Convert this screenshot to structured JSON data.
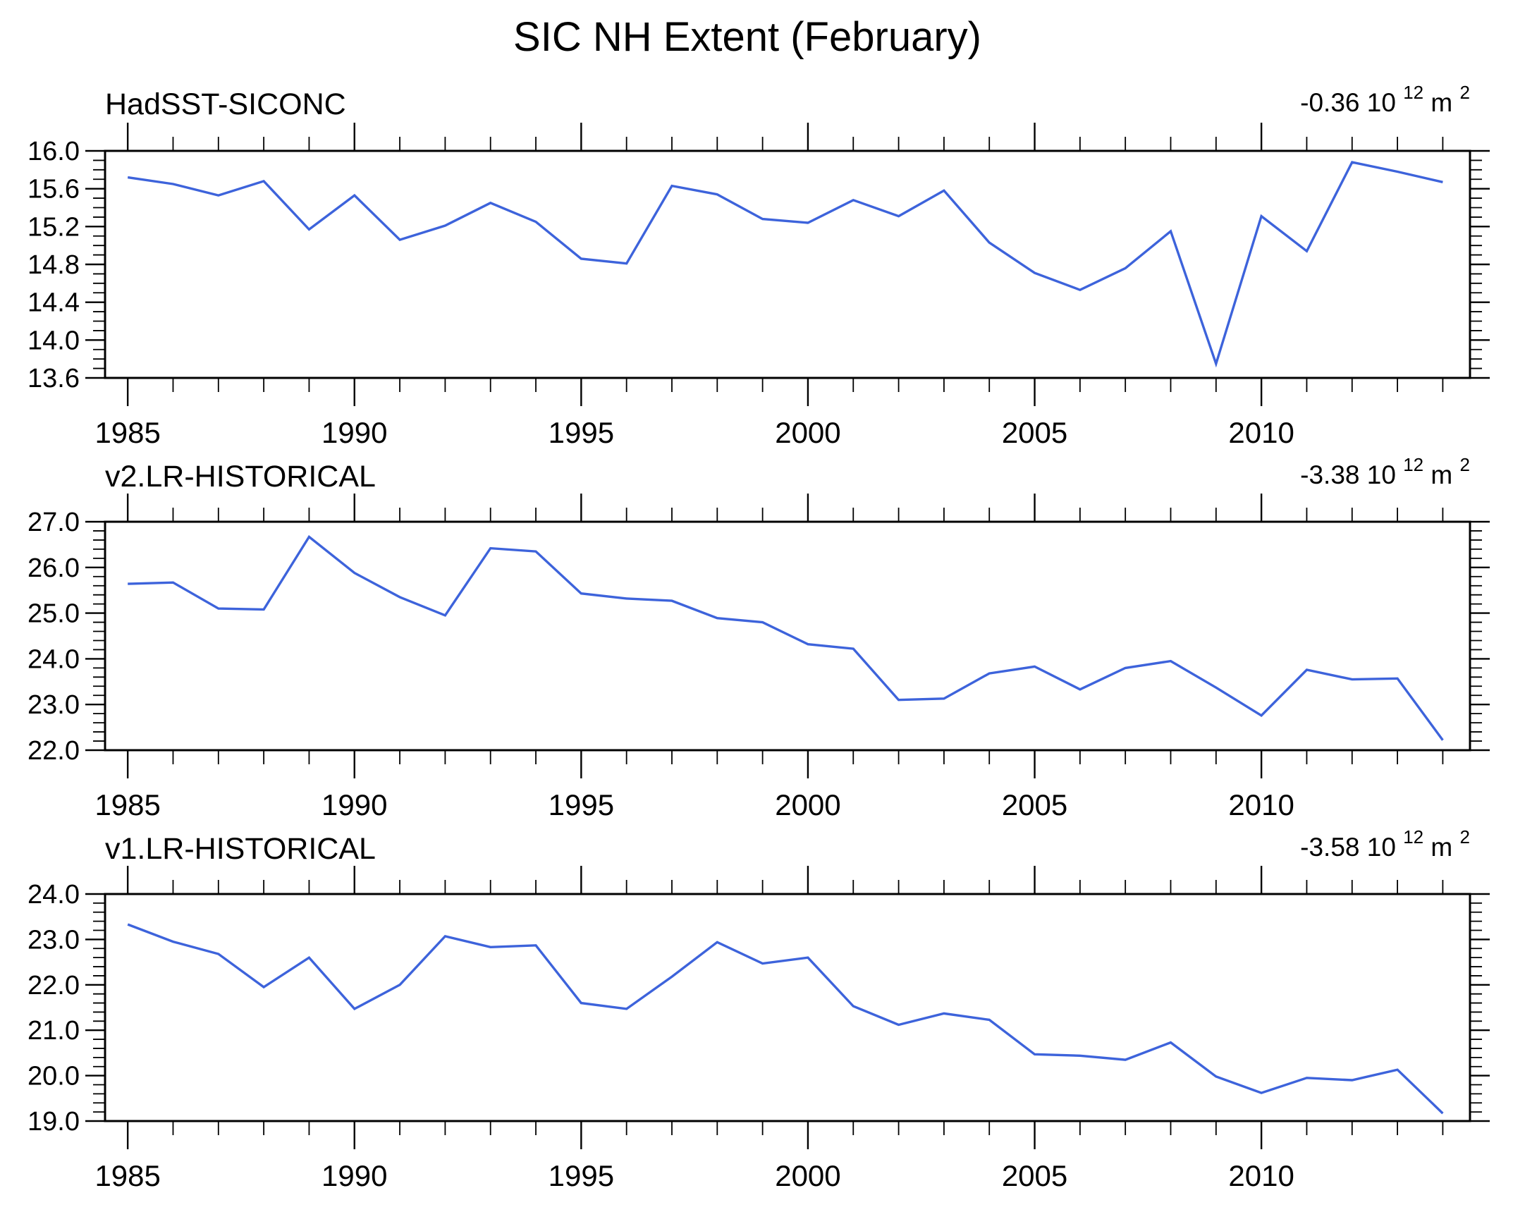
{
  "title": "SIC NH Extent (February)",
  "line_color": "#3D63DB",
  "axis_color": "#000000",
  "panels": [
    {
      "label": "HadSST-SICONC",
      "annotation": {
        "value": "-0.36 10",
        "exponent": "12",
        "unit": " m",
        "unit_exponent": "2"
      }
    },
    {
      "label": "v2.LR-HISTORICAL",
      "annotation": {
        "value": "-3.38 10",
        "exponent": "12",
        "unit": " m",
        "unit_exponent": "2"
      }
    },
    {
      "label": "v1.LR-HISTORICAL",
      "annotation": {
        "value": "-3.58 10",
        "exponent": "12",
        "unit": " m",
        "unit_exponent": "2"
      }
    }
  ],
  "chart_data": [
    {
      "type": "line",
      "title": "HadSST-SICONC",
      "annotation": "-0.36 10^12 m^2",
      "x": [
        1985,
        1986,
        1987,
        1988,
        1989,
        1990,
        1991,
        1992,
        1993,
        1994,
        1995,
        1996,
        1997,
        1998,
        1999,
        2000,
        2001,
        2002,
        2003,
        2004,
        2005,
        2006,
        2007,
        2008,
        2009,
        2010,
        2011,
        2012,
        2013,
        2014
      ],
      "values": [
        15.72,
        15.65,
        15.53,
        15.68,
        15.17,
        15.53,
        15.06,
        15.21,
        15.45,
        15.25,
        14.86,
        14.81,
        15.63,
        15.54,
        15.28,
        15.24,
        15.48,
        15.31,
        15.58,
        15.03,
        14.71,
        14.53,
        14.76,
        15.15,
        13.75,
        15.31,
        14.94,
        15.88,
        15.78,
        15.67
      ],
      "xlim": [
        1984.5,
        2014.6
      ],
      "ylim": [
        13.6,
        16.0
      ],
      "xtick_major_values": [
        1985,
        1990,
        1995,
        2000,
        2005,
        2010
      ],
      "xtick_major_labels": [
        "1985",
        "1990",
        "1995",
        "2000",
        "2005",
        "2010"
      ],
      "xtick_minor_step": 1,
      "ytick_values": [
        16.0,
        15.6,
        15.2,
        14.8,
        14.4,
        14.0,
        13.6
      ],
      "ytick_labels": [
        "16.0",
        "15.6",
        "15.2",
        "14.8",
        "14.4",
        "14.0",
        "13.6"
      ],
      "ytick_minor_step": 0.1,
      "grid": false,
      "legend": "none"
    },
    {
      "type": "line",
      "title": "v2.LR-HISTORICAL",
      "annotation": "-3.38 10^12 m^2",
      "x": [
        1985,
        1986,
        1987,
        1988,
        1989,
        1990,
        1991,
        1992,
        1993,
        1994,
        1995,
        1996,
        1997,
        1998,
        1999,
        2000,
        2001,
        2002,
        2003,
        2004,
        2005,
        2006,
        2007,
        2008,
        2009,
        2010,
        2011,
        2012,
        2013,
        2014
      ],
      "values": [
        25.64,
        25.67,
        25.1,
        25.08,
        26.67,
        25.88,
        25.35,
        24.95,
        26.42,
        26.35,
        25.43,
        25.32,
        25.27,
        24.89,
        24.8,
        24.32,
        24.22,
        23.1,
        23.13,
        23.68,
        23.83,
        23.33,
        23.8,
        23.95,
        23.37,
        22.76,
        23.76,
        23.55,
        23.57,
        22.22
      ],
      "xlim": [
        1984.5,
        2014.6
      ],
      "ylim": [
        22.0,
        27.0
      ],
      "xtick_major_values": [
        1985,
        1990,
        1995,
        2000,
        2005,
        2010
      ],
      "xtick_major_labels": [
        "1985",
        "1990",
        "1995",
        "2000",
        "2005",
        "2010"
      ],
      "xtick_minor_step": 1,
      "ytick_values": [
        27.0,
        26.0,
        25.0,
        24.0,
        23.0,
        22.0
      ],
      "ytick_labels": [
        "27.0",
        "26.0",
        "25.0",
        "24.0",
        "23.0",
        "22.0"
      ],
      "ytick_minor_step": 0.2,
      "grid": false,
      "legend": "none"
    },
    {
      "type": "line",
      "title": "v1.LR-HISTORICAL",
      "annotation": "-3.58 10^12 m^2",
      "x": [
        1985,
        1986,
        1987,
        1988,
        1989,
        1990,
        1991,
        1992,
        1993,
        1994,
        1995,
        1996,
        1997,
        1998,
        1999,
        2000,
        2001,
        2002,
        2003,
        2004,
        2005,
        2006,
        2007,
        2008,
        2009,
        2010,
        2011,
        2012,
        2013,
        2014
      ],
      "values": [
        23.33,
        22.95,
        22.68,
        21.95,
        22.6,
        21.47,
        22.0,
        23.07,
        22.83,
        22.87,
        21.6,
        21.47,
        22.18,
        22.94,
        22.47,
        22.6,
        21.53,
        21.12,
        21.37,
        21.23,
        20.47,
        20.44,
        20.35,
        20.73,
        19.98,
        19.62,
        19.95,
        19.9,
        20.13,
        19.17
      ],
      "xlim": [
        1984.5,
        2014.6
      ],
      "ylim": [
        19.0,
        24.0
      ],
      "xtick_major_values": [
        1985,
        1990,
        1995,
        2000,
        2005,
        2010
      ],
      "xtick_major_labels": [
        "1985",
        "1990",
        "1995",
        "2000",
        "2005",
        "2010"
      ],
      "xtick_minor_step": 1,
      "ytick_values": [
        24.0,
        23.0,
        22.0,
        21.0,
        20.0,
        19.0
      ],
      "ytick_labels": [
        "24.0",
        "23.0",
        "22.0",
        "21.0",
        "20.0",
        "19.0"
      ],
      "ytick_minor_step": 0.2,
      "grid": false,
      "legend": "none"
    }
  ]
}
